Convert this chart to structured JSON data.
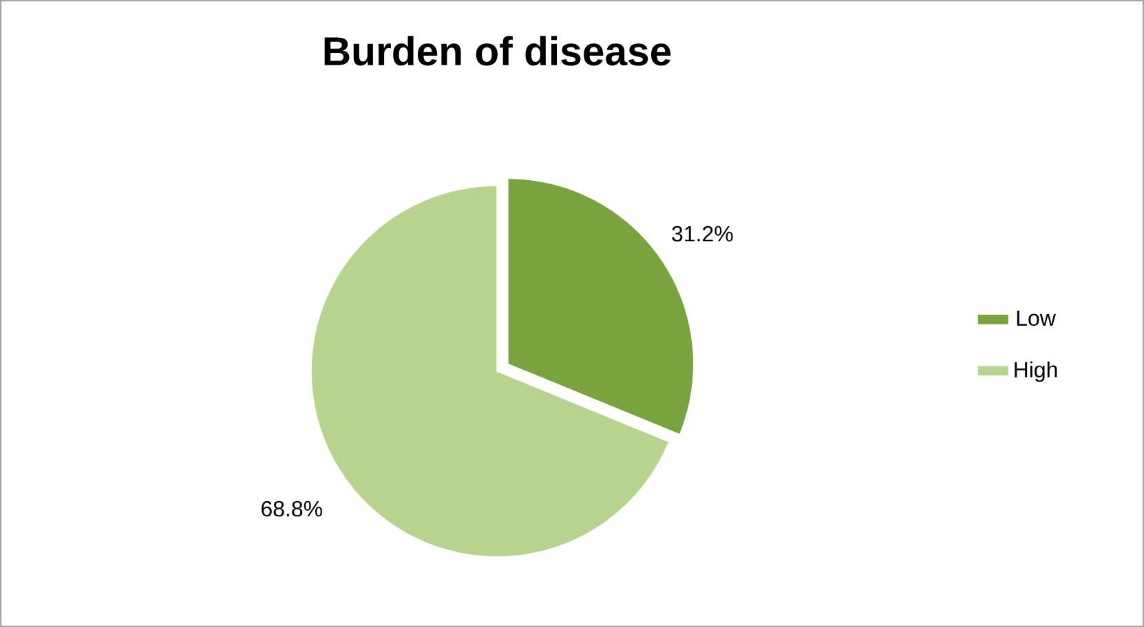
{
  "chart_data": {
    "type": "pie",
    "title": "Burden of disease",
    "categories": [
      "Low",
      "High"
    ],
    "values": [
      31.2,
      68.8
    ],
    "value_labels": [
      "31.2%",
      "68.8%"
    ],
    "colors": [
      "#79a33d",
      "#b6d48e"
    ],
    "legend": "right"
  }
}
